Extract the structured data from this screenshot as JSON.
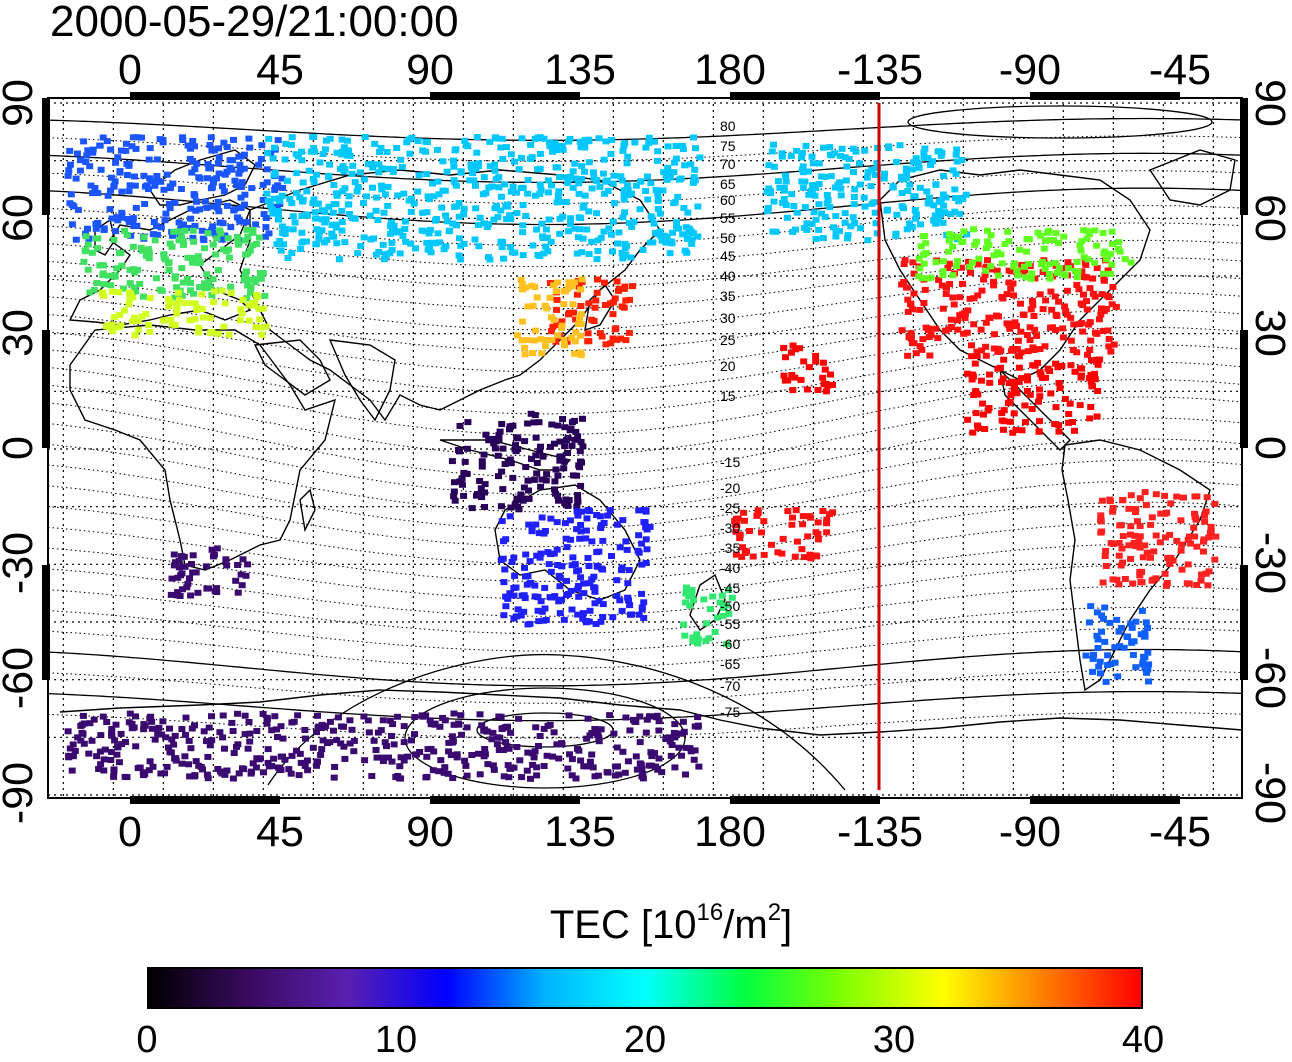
{
  "timestamp": "2000-05-29/21:00:00",
  "axes": {
    "lon_ticks": [
      "0",
      "45",
      "90",
      "135",
      "180",
      "-135",
      "-90",
      "-45"
    ],
    "lat_ticks_left": [
      "90",
      "60",
      "30",
      "0",
      "-30",
      "-60",
      "-90"
    ],
    "lat_ticks_right": [
      "90",
      "60",
      "30",
      "0",
      "-30",
      "-60",
      "-90"
    ]
  },
  "contours": {
    "magnetic_latitude_labels": [
      "80",
      "75",
      "70",
      "65",
      "60",
      "55",
      "50",
      "45",
      "40",
      "35",
      "30",
      "25",
      "20",
      "15",
      "-15",
      "-20",
      "-25",
      "-30",
      "-35",
      "-40",
      "-45",
      "-50",
      "-55",
      "-60",
      "-65",
      "-70",
      "-75"
    ]
  },
  "terminator_color": "#cc0000",
  "colorbar": {
    "title": "TEC  [10",
    "title_exp": "16",
    "title_unit": "/m",
    "title_unit_exp": "2",
    "title_close": "]",
    "tick_labels": [
      "0",
      "10",
      "20",
      "30",
      "40"
    ],
    "colors": [
      "#000000",
      "#3a0a60",
      "#5a1fb0",
      "#0000ff",
      "#00b4ff",
      "#00ffff",
      "#00ff40",
      "#80ff00",
      "#ffff00",
      "#ff8000",
      "#ff0000"
    ]
  },
  "regions": [
    {
      "name": "north-europe",
      "lon": [
        -20,
        45
      ],
      "lat": [
        55,
        82
      ],
      "color": "#1a55ff"
    },
    {
      "name": "central-europe",
      "lon": [
        -15,
        40
      ],
      "lat": [
        40,
        58
      ],
      "color": "#40e060"
    },
    {
      "name": "mediterranean",
      "lon": [
        -10,
        40
      ],
      "lat": [
        30,
        42
      ],
      "color": "#d0ff20"
    },
    {
      "name": "russia-north",
      "lon": [
        40,
        170
      ],
      "lat": [
        50,
        82
      ],
      "color": "#00c8ff"
    },
    {
      "name": "japan",
      "lon": [
        125,
        150
      ],
      "lat": [
        28,
        45
      ],
      "color": "#ff2000"
    },
    {
      "name": "east-china",
      "lon": [
        115,
        135
      ],
      "lat": [
        25,
        45
      ],
      "color": "#ffc020"
    },
    {
      "name": "indonesia",
      "lon": [
        95,
        135
      ],
      "lat": [
        -15,
        10
      ],
      "color": "#28005a"
    },
    {
      "name": "australia",
      "lon": [
        110,
        155
      ],
      "lat": [
        -45,
        -15
      ],
      "color": "#2020ff"
    },
    {
      "name": "new-zealand",
      "lon": [
        165,
        180
      ],
      "lat": [
        -50,
        -35
      ],
      "color": "#30e870"
    },
    {
      "name": "south-africa",
      "lon": [
        10,
        35
      ],
      "lat": [
        -38,
        -25
      ],
      "color": "#3a0a70"
    },
    {
      "name": "antarctica-coast",
      "lon": [
        -20,
        170
      ],
      "lat": [
        -85,
        -68
      ],
      "color": "#3a0a70"
    },
    {
      "name": "alaska-canada",
      "lon": [
        -170,
        -110
      ],
      "lat": [
        55,
        80
      ],
      "color": "#00c8ff"
    },
    {
      "name": "usa",
      "lon": [
        -130,
        -65
      ],
      "lat": [
        25,
        50
      ],
      "color": "#ff1010"
    },
    {
      "name": "canada-south",
      "lon": [
        -125,
        -60
      ],
      "lat": [
        45,
        58
      ],
      "color": "#60ff20"
    },
    {
      "name": "hawaii",
      "lon": [
        -165,
        -150
      ],
      "lat": [
        15,
        28
      ],
      "color": "#ff0000"
    },
    {
      "name": "central-america",
      "lon": [
        -110,
        -70
      ],
      "lat": [
        5,
        25
      ],
      "color": "#ff0000"
    },
    {
      "name": "south-america-brazil",
      "lon": [
        -70,
        -35
      ],
      "lat": [
        -35,
        -10
      ],
      "color": "#ff2020"
    },
    {
      "name": "patagonia",
      "lon": [
        -75,
        -55
      ],
      "lat": [
        -60,
        -40
      ],
      "color": "#1060ff"
    },
    {
      "name": "south-pacific",
      "lon": [
        180,
        210
      ],
      "lat": [
        -28,
        -15
      ],
      "color": "#ff1010"
    }
  ]
}
